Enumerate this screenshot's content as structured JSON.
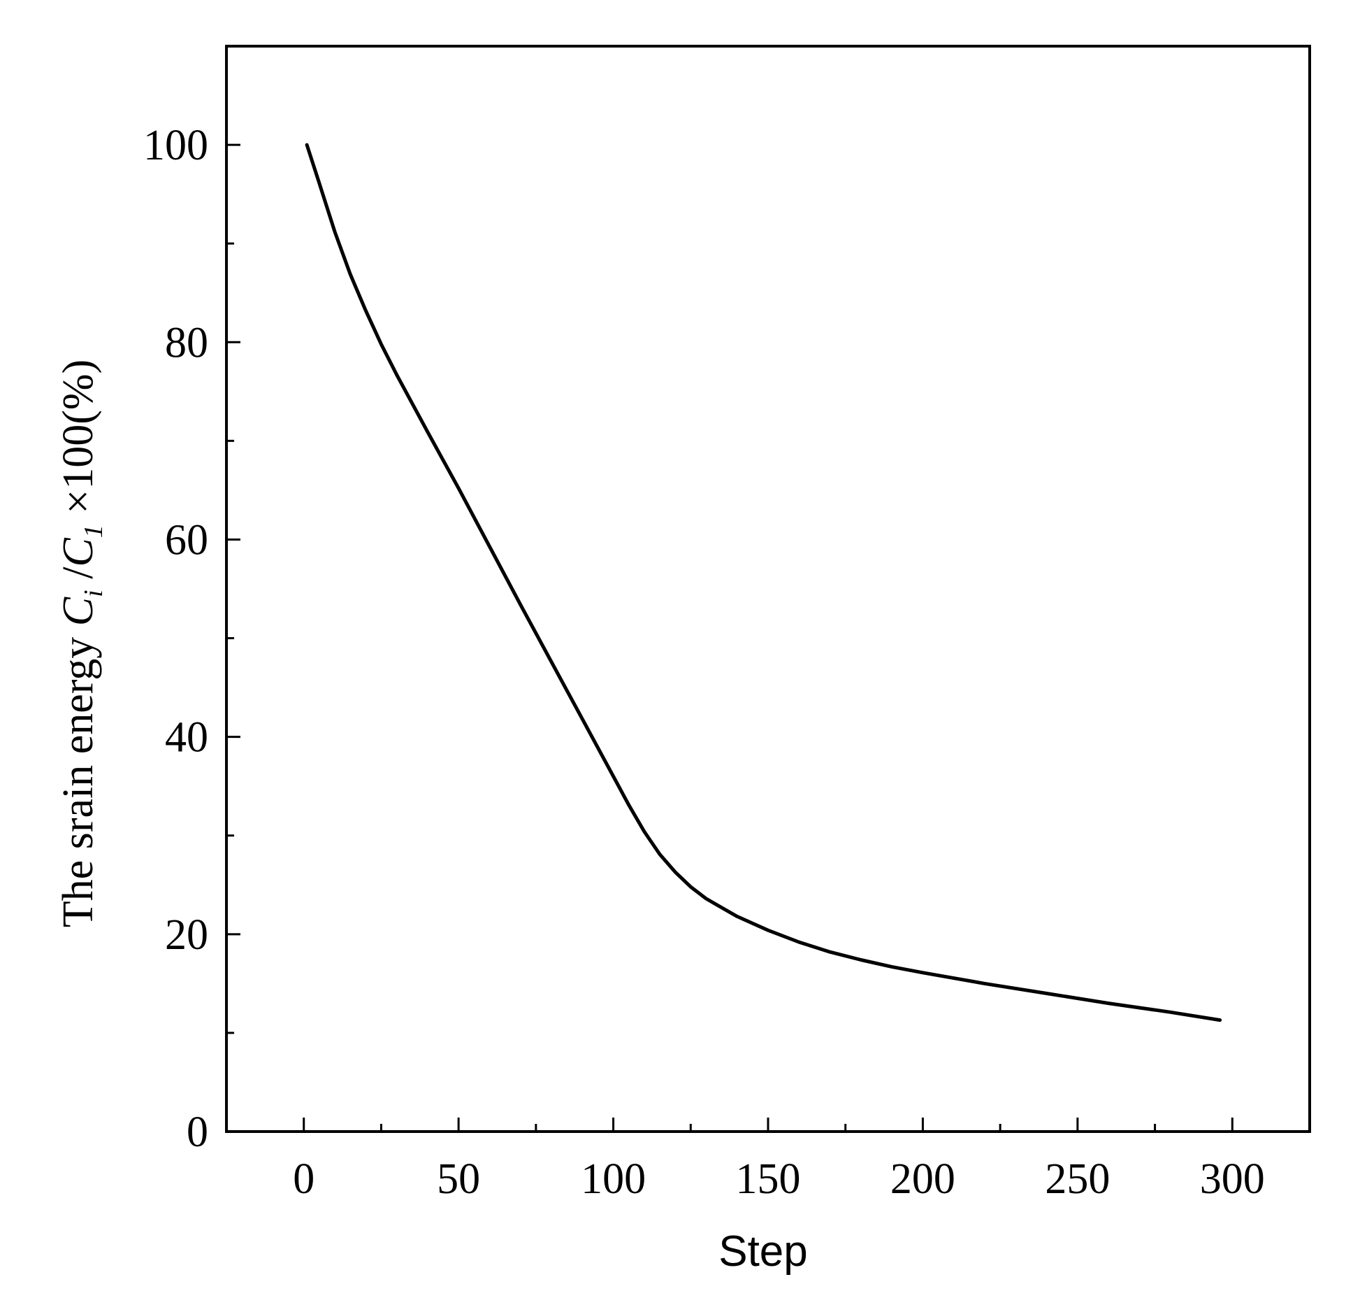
{
  "chart_data": {
    "type": "line",
    "title": "",
    "xlabel": "Step",
    "ylabel": {
      "prefix": "The  srain energy ",
      "var1": "C",
      "sub1": "i",
      "sep": " /",
      "var2": "C",
      "sub2": "1",
      "suffix": " ×100(%)"
    },
    "xlim": [
      -25,
      325
    ],
    "ylim": [
      0,
      110
    ],
    "xticks": [
      0,
      50,
      100,
      150,
      200,
      250,
      300
    ],
    "xtick_labels": [
      "0",
      "50",
      "100",
      "150",
      "200",
      "250",
      "300"
    ],
    "xminor": [
      25,
      75,
      125,
      175,
      225,
      275
    ],
    "yticks": [
      0,
      20,
      40,
      60,
      80,
      100
    ],
    "ytick_labels": [
      "0",
      "20",
      "40",
      "60",
      "80",
      "100"
    ],
    "yminor": [
      10,
      30,
      50,
      70,
      90
    ],
    "grid": false,
    "series": [
      {
        "color": "#000000",
        "x": [
          1,
          5,
          10,
          15,
          20,
          25,
          30,
          40,
          50,
          60,
          70,
          80,
          90,
          100,
          105,
          110,
          115,
          120,
          125,
          130,
          140,
          150,
          160,
          170,
          180,
          190,
          200,
          220,
          240,
          260,
          280,
          296
        ],
        "y": [
          100,
          96.1,
          91.2,
          86.9,
          83.2,
          79.8,
          76.7,
          70.9,
          65.2,
          59.3,
          53.4,
          47.6,
          41.8,
          36.0,
          33.1,
          30.4,
          28.1,
          26.3,
          24.8,
          23.6,
          21.8,
          20.4,
          19.2,
          18.2,
          17.4,
          16.7,
          16.1,
          15.0,
          14.0,
          13.0,
          12.1,
          11.3
        ]
      }
    ]
  }
}
